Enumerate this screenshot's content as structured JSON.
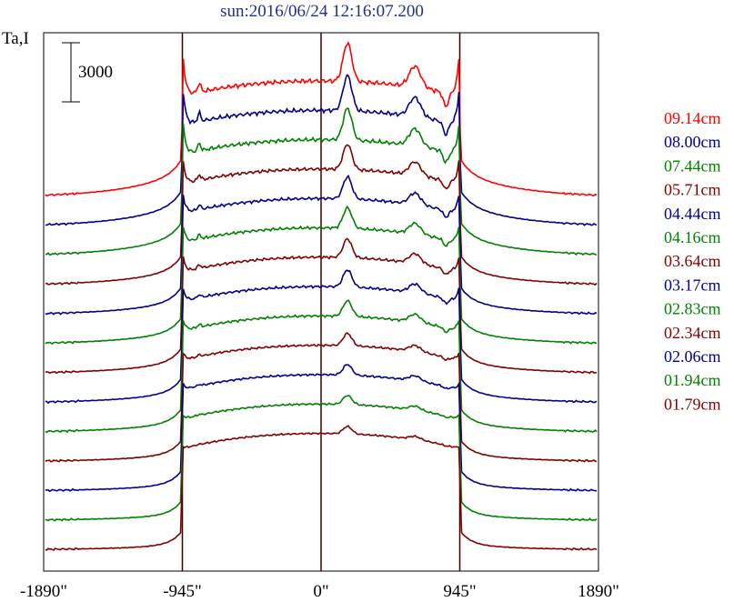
{
  "chart_data": {
    "type": "line",
    "title": "sun:2016/06/24 12:16:07.200",
    "ylabel": "Ta,I",
    "scale_bar_label": "3000",
    "scale_bar_value": 3000,
    "x_ticks": [
      {
        "value": -1890,
        "label": "-1890\""
      },
      {
        "value": -945,
        "label": "-945\""
      },
      {
        "value": 0,
        "label": "0\""
      },
      {
        "value": 945,
        "label": "945\""
      },
      {
        "value": 1890,
        "label": "1890\""
      }
    ],
    "xlim": [
      -1890,
      1890
    ],
    "vertical_lines": [
      -945,
      0,
      945
    ],
    "vertical_line_color": "#3a0000",
    "series": [
      {
        "name": "09.14cm",
        "color": "#ff0000",
        "bump": 1.0
      },
      {
        "name": "08.00cm",
        "color": "#00008b",
        "bump": 0.9
      },
      {
        "name": "07.44cm",
        "color": "#008000",
        "bump": 0.8
      },
      {
        "name": "05.71cm",
        "color": "#800000",
        "bump": 0.6
      },
      {
        "name": "04.44cm",
        "color": "#00008b",
        "bump": 0.5
      },
      {
        "name": "04.16cm",
        "color": "#008000",
        "bump": 0.45
      },
      {
        "name": "03.64cm",
        "color": "#800000",
        "bump": 0.4
      },
      {
        "name": "03.17cm",
        "color": "#00008b",
        "bump": 0.35
      },
      {
        "name": "02.83cm",
        "color": "#008000",
        "bump": 0.3
      },
      {
        "name": "02.34cm",
        "color": "#800000",
        "bump": 0.2
      },
      {
        "name": "02.06cm",
        "color": "#00008b",
        "bump": 0.15
      },
      {
        "name": "01.94cm",
        "color": "#008000",
        "bump": 0.1
      },
      {
        "name": "01.79cm",
        "color": "#800000",
        "bump": 0.05
      }
    ]
  }
}
